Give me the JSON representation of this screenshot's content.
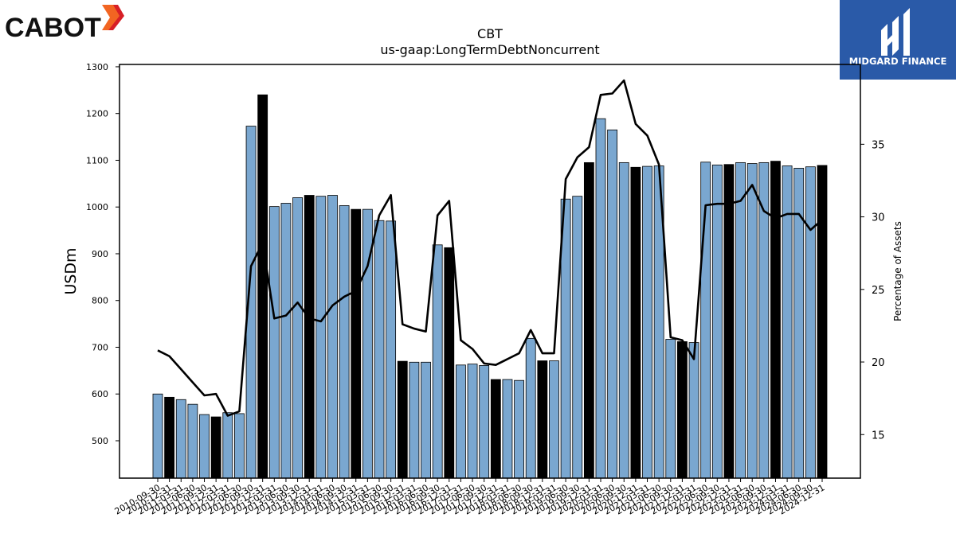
{
  "brand": {
    "left_logo_text": "CABOT",
    "right_logo_text": "MIDGARD FINANCE",
    "right_logo_color": "#2a5aa8",
    "cabot_flame_colors": [
      "#f26522",
      "#d71f26"
    ]
  },
  "chart_data": {
    "type": "bar",
    "title": "CBT",
    "subtitle": "us-gaap:LongTermDebtNoncurrent",
    "ylabel": "USDm",
    "y2label": "Percentage of Assets",
    "ylim": [
      420,
      1305
    ],
    "y2lim": [
      12.0,
      40.5
    ],
    "yticks": [
      500,
      600,
      700,
      800,
      900,
      1000,
      1100,
      1200,
      1300
    ],
    "y2ticks": [
      15,
      20,
      25,
      30,
      35
    ],
    "bar_color_light": "#7aa7d0",
    "bar_color_dark": "#000000",
    "line_color": "#000000",
    "categories": [
      "2010-09-30",
      "2010-12-31",
      "2011-03-31",
      "2011-06-30",
      "2011-09-30",
      "2011-12-31",
      "2012-03-31",
      "2012-06-30",
      "2012-09-30",
      "2012-12-31",
      "2013-03-31",
      "2013-06-30",
      "2013-09-30",
      "2013-12-31",
      "2014-03-31",
      "2014-06-30",
      "2014-09-30",
      "2014-12-31",
      "2015-03-31",
      "2015-06-30",
      "2015-09-30",
      "2015-12-31",
      "2016-03-31",
      "2016-06-30",
      "2016-09-30",
      "2016-12-31",
      "2017-03-31",
      "2017-06-30",
      "2017-09-30",
      "2017-12-31",
      "2018-03-31",
      "2018-06-30",
      "2018-09-30",
      "2018-12-31",
      "2019-03-31",
      "2019-06-30",
      "2019-09-30",
      "2019-12-31",
      "2020-03-31",
      "2020-06-30",
      "2020-09-30",
      "2020-12-31",
      "2021-03-31",
      "2021-06-30",
      "2021-09-30",
      "2021-12-31",
      "2022-03-31",
      "2022-06-30",
      "2022-09-30",
      "2022-12-31",
      "2023-03-31",
      "2023-06-30",
      "2023-09-30",
      "2023-12-31",
      "2024-03-31",
      "2024-06-30",
      "2024-09-30",
      "2024-12-31"
    ],
    "series": [
      {
        "type": "bar",
        "values": [
          600,
          593,
          588,
          578,
          556,
          551,
          560,
          558,
          1173,
          1240,
          1001,
          1008,
          1020,
          1025,
          1023,
          1025,
          1003,
          995,
          995,
          971,
          970,
          670,
          668,
          668,
          919,
          913,
          662,
          664,
          661,
          631,
          631,
          629,
          719,
          671,
          671,
          1017,
          1023,
          1095,
          1189,
          1165,
          1095,
          1085,
          1087,
          1088,
          717,
          712,
          710,
          1096,
          1090,
          1091,
          1095,
          1093,
          1095,
          1098,
          1088,
          1083,
          1086,
          1089
        ],
        "dark": [
          false,
          true,
          false,
          false,
          false,
          true,
          false,
          false,
          false,
          true,
          false,
          false,
          false,
          true,
          false,
          false,
          false,
          true,
          false,
          false,
          false,
          true,
          false,
          false,
          false,
          true,
          false,
          false,
          false,
          true,
          false,
          false,
          false,
          true,
          false,
          false,
          false,
          true,
          false,
          false,
          false,
          true,
          false,
          false,
          false,
          true,
          false,
          false,
          false,
          true,
          false,
          false,
          false,
          true,
          false,
          false,
          false,
          true
        ]
      },
      {
        "type": "line",
        "axis": "right",
        "values": [
          20.8,
          20.4,
          19.5,
          18.6,
          17.7,
          17.8,
          16.3,
          16.6,
          26.6,
          28.2,
          23.0,
          23.2,
          24.1,
          23.0,
          22.8,
          23.9,
          24.5,
          24.9,
          26.6,
          30.1,
          31.5,
          22.6,
          22.3,
          22.1,
          30.1,
          31.1,
          21.5,
          20.9,
          19.9,
          19.8,
          20.2,
          20.6,
          22.2,
          20.6,
          20.6,
          32.6,
          34.1,
          34.8,
          38.4,
          38.5,
          39.4,
          36.4,
          35.6,
          33.6,
          21.7,
          21.5,
          20.2,
          30.8,
          30.9,
          30.9,
          31.1,
          32.2,
          30.4,
          29.9,
          30.2,
          30.2,
          29.1,
          29.8
        ]
      }
    ]
  }
}
